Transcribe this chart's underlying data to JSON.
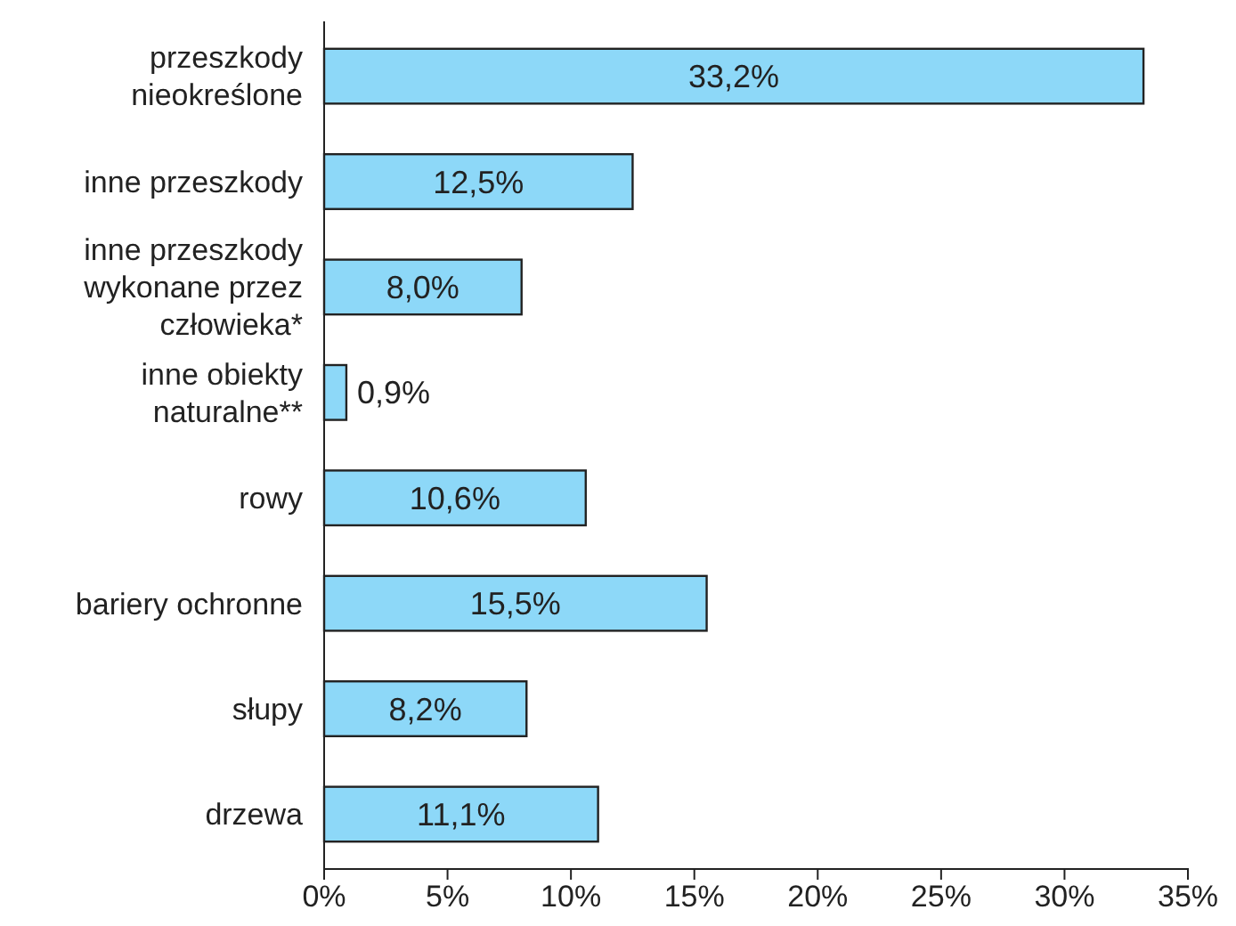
{
  "chart_data": {
    "type": "bar",
    "orientation": "horizontal",
    "categories": [
      "przeszkody\nnieokreślone",
      "inne przeszkody",
      "inne przeszkody\nwykonane przez\nczłowieka*",
      "inne obiekty\nnaturalne**",
      "rowy",
      "bariery ochronne",
      "słupy",
      "drzewa"
    ],
    "values": [
      33.2,
      12.5,
      8.0,
      0.9,
      10.6,
      15.5,
      8.2,
      11.1
    ],
    "value_labels": [
      "33,2%",
      "12,5%",
      "8,0%",
      "0,9%",
      "10,6%",
      "15,5%",
      "8,2%",
      "11,1%"
    ],
    "color": "#8dd8f8",
    "xlim": [
      0,
      35
    ],
    "xticks": [
      {
        "value": 0,
        "label": "0%"
      },
      {
        "value": 5,
        "label": "5%"
      },
      {
        "value": 10,
        "label": "10%"
      },
      {
        "value": 15,
        "label": "15%"
      },
      {
        "value": 20,
        "label": "20%"
      },
      {
        "value": 25,
        "label": "25%"
      },
      {
        "value": 30,
        "label": "30%"
      },
      {
        "value": 35,
        "label": "35%"
      }
    ],
    "grid": false
  }
}
